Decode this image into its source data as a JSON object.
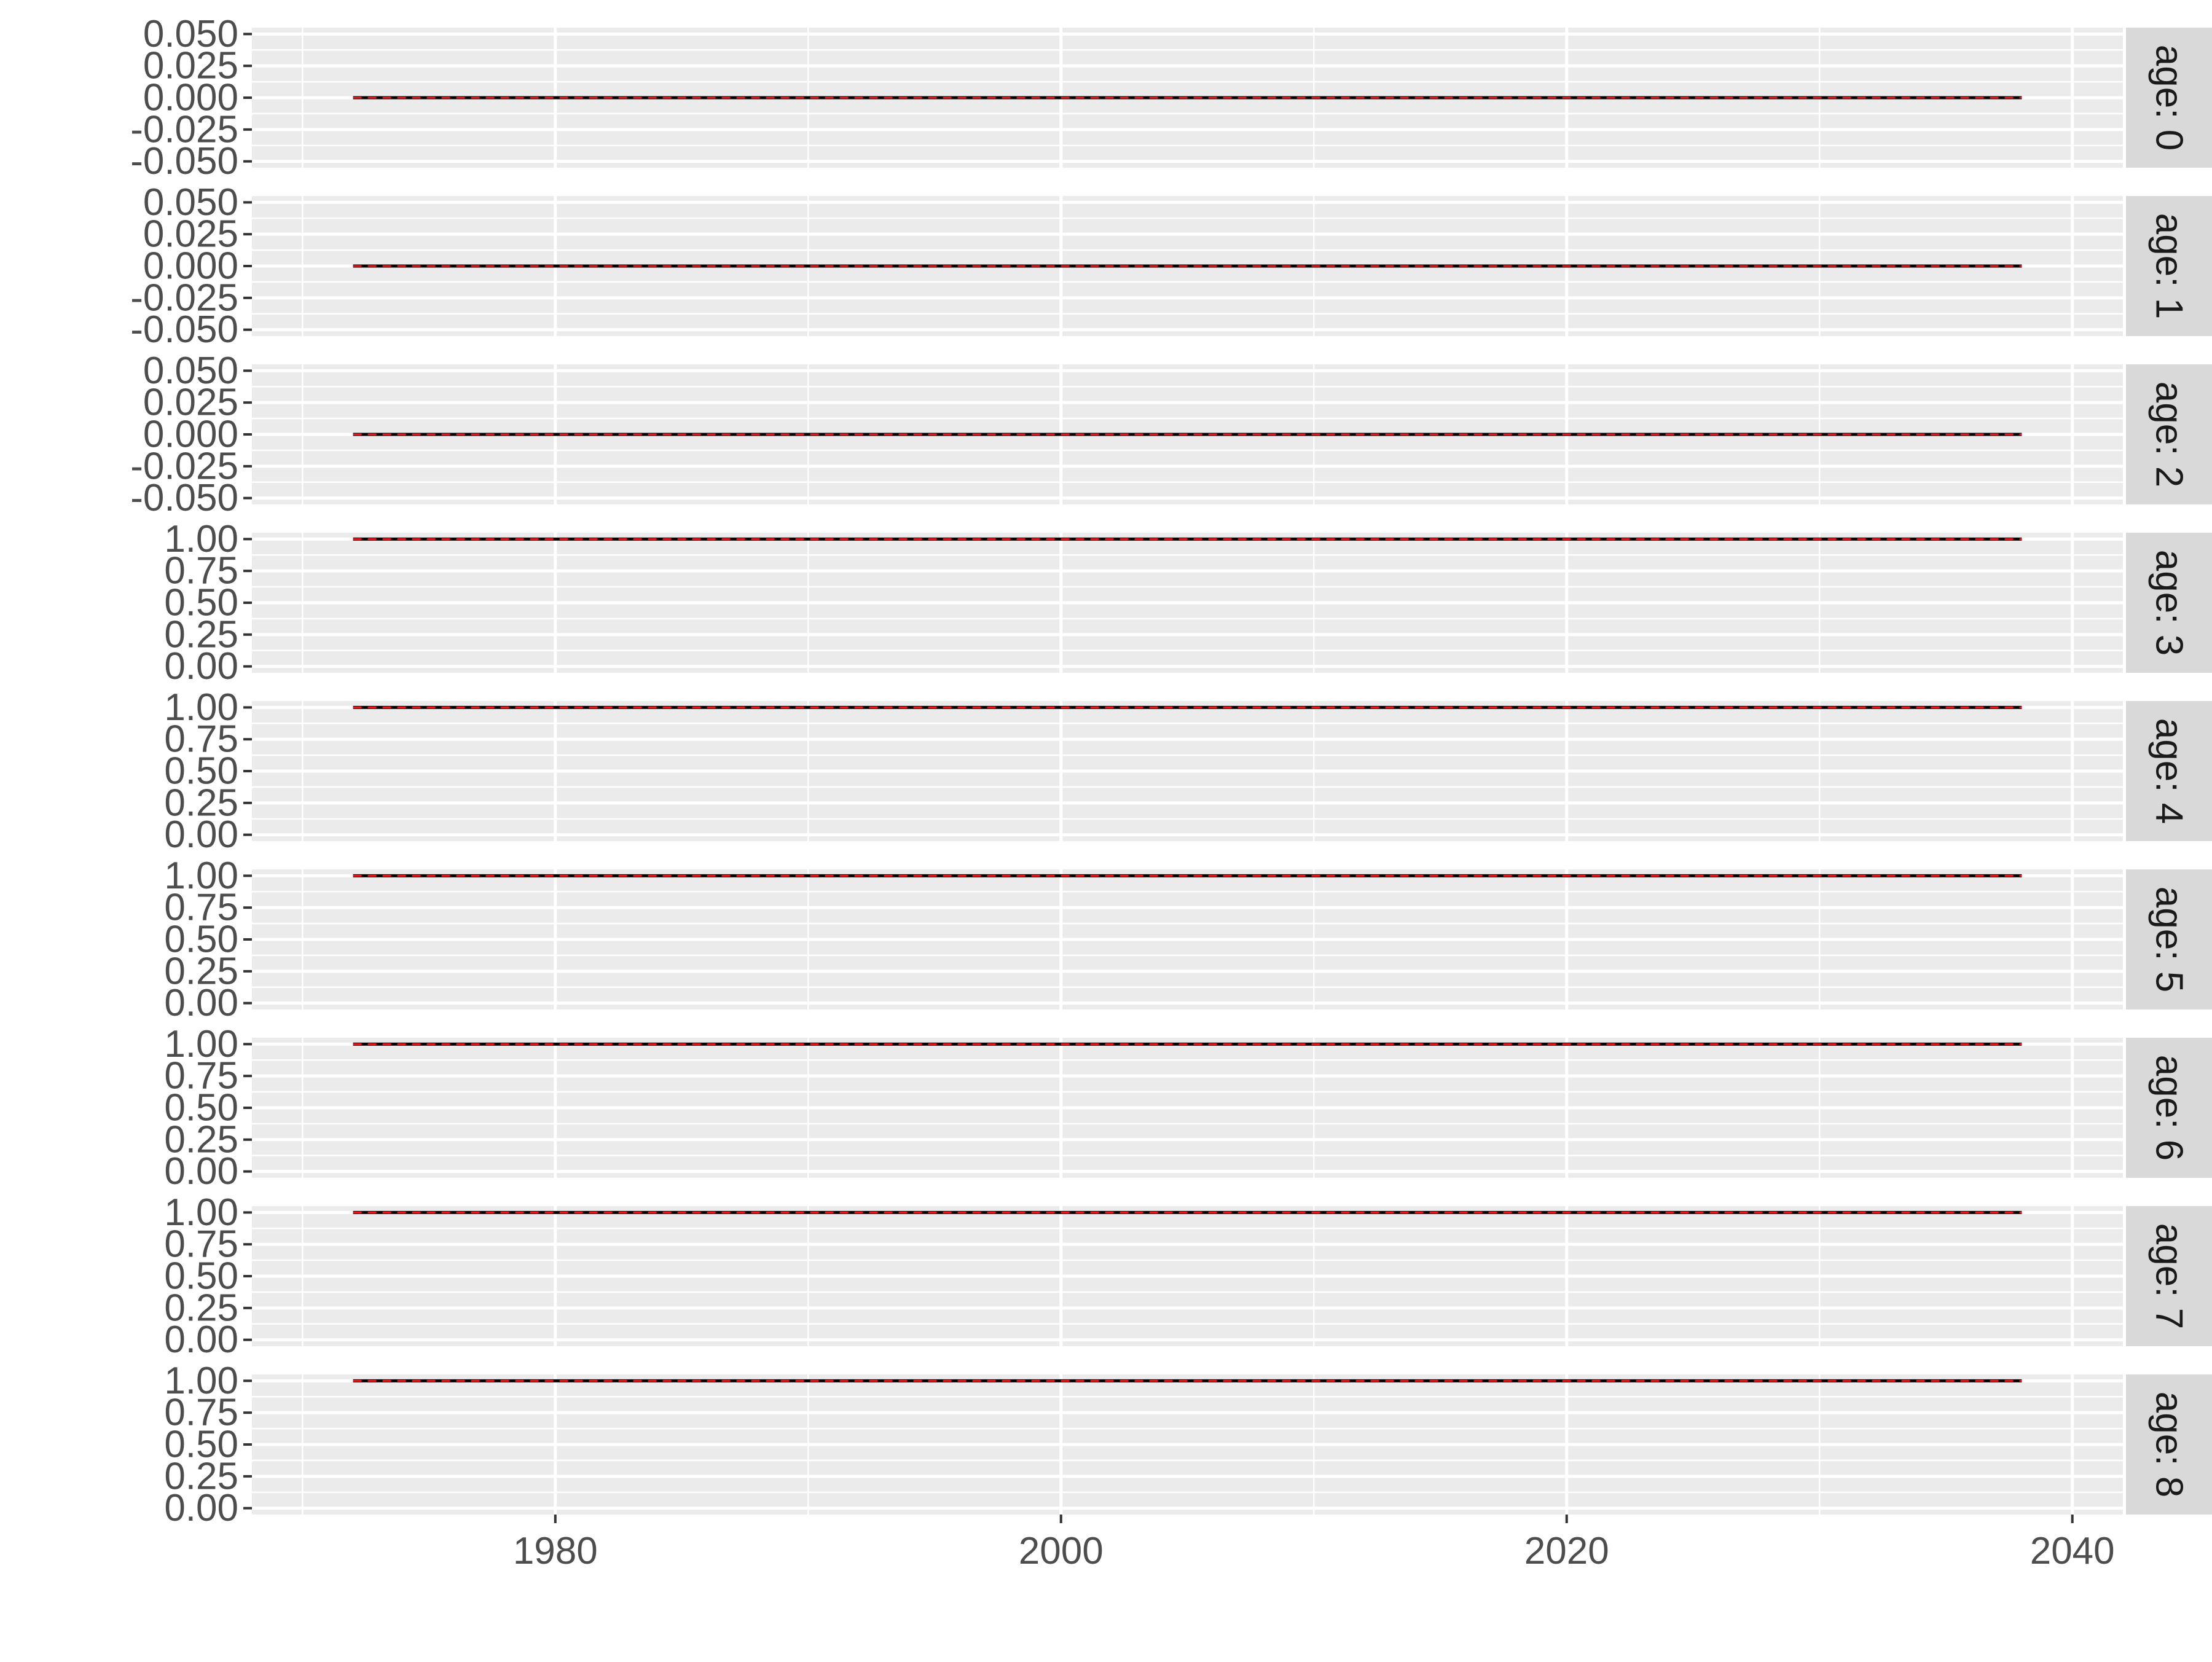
{
  "chart_data": {
    "type": "line",
    "facet_by": "age",
    "xlim": [
      1968,
      2042
    ],
    "x_ticks": [
      1980,
      2000,
      2020,
      2040
    ],
    "x_tick_labels": [
      "1980",
      "2000",
      "2020",
      "2040"
    ],
    "xlabel": "",
    "ylabel": "",
    "grid": true,
    "legend": "none",
    "colors": {
      "panel_background": "#ebebeb",
      "grid_line": "#ffffff",
      "strip_background": "#d9d9d9",
      "series_solid": "#000000",
      "series_dashed": "#e41a1c"
    },
    "series_styles": [
      {
        "line": "solid",
        "color": "#000000"
      },
      {
        "line": "dashed",
        "color": "#e41a1c"
      }
    ],
    "facets": [
      {
        "strip": "age: 0",
        "ylim": [
          -0.05,
          0.05
        ],
        "y_ticks": [
          0.05,
          0.025,
          0,
          -0.025,
          -0.05
        ],
        "y_tick_labels": [
          "0.050",
          "0.025",
          "0.000",
          "-0.025",
          "-0.050"
        ],
        "x": [
          1972,
          2038
        ],
        "values": [
          0,
          0
        ]
      },
      {
        "strip": "age: 1",
        "ylim": [
          -0.05,
          0.05
        ],
        "y_ticks": [
          0.05,
          0.025,
          0,
          -0.025,
          -0.05
        ],
        "y_tick_labels": [
          "0.050",
          "0.025",
          "0.000",
          "-0.025",
          "-0.050"
        ],
        "x": [
          1972,
          2038
        ],
        "values": [
          0,
          0
        ]
      },
      {
        "strip": "age: 2",
        "ylim": [
          -0.05,
          0.05
        ],
        "y_ticks": [
          0.05,
          0.025,
          0,
          -0.025,
          -0.05
        ],
        "y_tick_labels": [
          "0.050",
          "0.025",
          "0.000",
          "-0.025",
          "-0.050"
        ],
        "x": [
          1972,
          2038
        ],
        "values": [
          0,
          0
        ]
      },
      {
        "strip": "age: 3",
        "ylim": [
          0,
          1
        ],
        "y_ticks": [
          1,
          0.75,
          0.5,
          0.25,
          0
        ],
        "y_tick_labels": [
          "1.00",
          "0.75",
          "0.50",
          "0.25",
          "0.00"
        ],
        "x": [
          1972,
          2038
        ],
        "values": [
          1,
          1
        ]
      },
      {
        "strip": "age: 4",
        "ylim": [
          0,
          1
        ],
        "y_ticks": [
          1,
          0.75,
          0.5,
          0.25,
          0
        ],
        "y_tick_labels": [
          "1.00",
          "0.75",
          "0.50",
          "0.25",
          "0.00"
        ],
        "x": [
          1972,
          2038
        ],
        "values": [
          1,
          1
        ]
      },
      {
        "strip": "age: 5",
        "ylim": [
          0,
          1
        ],
        "y_ticks": [
          1,
          0.75,
          0.5,
          0.25,
          0
        ],
        "y_tick_labels": [
          "1.00",
          "0.75",
          "0.50",
          "0.25",
          "0.00"
        ],
        "x": [
          1972,
          2038
        ],
        "values": [
          1,
          1
        ]
      },
      {
        "strip": "age: 6",
        "ylim": [
          0,
          1
        ],
        "y_ticks": [
          1,
          0.75,
          0.5,
          0.25,
          0
        ],
        "y_tick_labels": [
          "1.00",
          "0.75",
          "0.50",
          "0.25",
          "0.00"
        ],
        "x": [
          1972,
          2038
        ],
        "values": [
          1,
          1
        ]
      },
      {
        "strip": "age: 7",
        "ylim": [
          0,
          1
        ],
        "y_ticks": [
          1,
          0.75,
          0.5,
          0.25,
          0
        ],
        "y_tick_labels": [
          "1.00",
          "0.75",
          "0.50",
          "0.25",
          "0.00"
        ],
        "x": [
          1972,
          2038
        ],
        "values": [
          1,
          1
        ]
      },
      {
        "strip": "age: 8",
        "ylim": [
          0,
          1
        ],
        "y_ticks": [
          1,
          0.75,
          0.5,
          0.25,
          0
        ],
        "y_tick_labels": [
          "1.00",
          "0.75",
          "0.50",
          "0.25",
          "0.00"
        ],
        "x": [
          1972,
          2038
        ],
        "values": [
          1,
          1
        ]
      }
    ]
  }
}
